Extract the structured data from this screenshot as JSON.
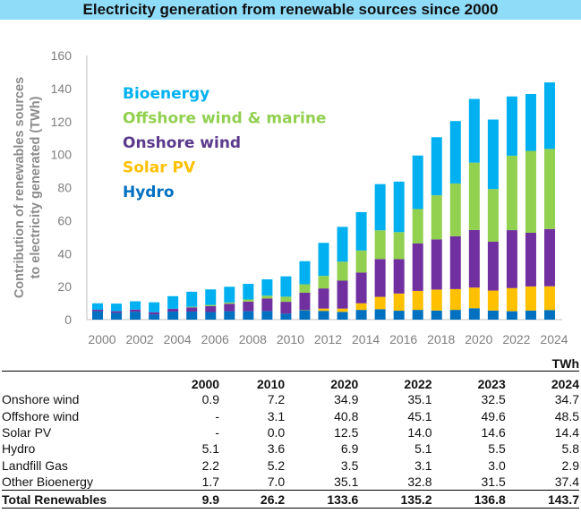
{
  "title": "Electricity generation from renewable sources since 2000",
  "chart_data": {
    "type": "bar",
    "stacked": true,
    "title": "Electricity generation from renewable sources since 2000",
    "xlabel": "",
    "ylabel": "Contribution of  renewables sources to electricity generated (TWh)",
    "ylabel_lines": [
      "Contribution of  renewables sources",
      "to electricity generated (TWh)"
    ],
    "ylim": [
      0,
      160
    ],
    "yticks": [
      0,
      20,
      40,
      60,
      80,
      100,
      120,
      140,
      160
    ],
    "grid": false,
    "legend_position": "top-left",
    "categories": [
      "2000",
      "2001",
      "2002",
      "2003",
      "2004",
      "2005",
      "2006",
      "2007",
      "2008",
      "2009",
      "2010",
      "2011",
      "2012",
      "2013",
      "2014",
      "2015",
      "2016",
      "2017",
      "2018",
      "2019",
      "2020",
      "2021",
      "2022",
      "2023",
      "2024"
    ],
    "xtick_labels": [
      "2000",
      "2002",
      "2004",
      "2006",
      "2008",
      "2010",
      "2012",
      "2014",
      "2016",
      "2018",
      "2020",
      "2022",
      "2024"
    ],
    "series": [
      {
        "name": "Hydro",
        "color": "#0070c0",
        "values": [
          5.1,
          4.1,
          4.8,
          3.2,
          4.9,
          4.9,
          4.6,
          5.1,
          5.1,
          5.2,
          3.6,
          5.7,
          5.3,
          4.7,
          5.9,
          6.3,
          5.4,
          5.9,
          5.5,
          5.9,
          6.9,
          5.5,
          5.1,
          5.5,
          5.8
        ]
      },
      {
        "name": "Solar PV",
        "color": "#ffc000",
        "values": [
          0,
          0,
          0,
          0,
          0,
          0,
          0,
          0,
          0,
          0,
          0.0,
          0.2,
          1.4,
          2.0,
          4.0,
          7.5,
          10.4,
          11.5,
          12.7,
          12.6,
          12.5,
          12.1,
          14.0,
          14.6,
          14.4
        ]
      },
      {
        "name": "Onshore wind",
        "color": "#7030a0",
        "values": [
          0.9,
          1.0,
          1.3,
          1.3,
          1.7,
          2.5,
          3.6,
          4.5,
          5.8,
          7.6,
          7.2,
          10.4,
          12.2,
          16.9,
          18.6,
          22.9,
          20.8,
          28.7,
          30.4,
          32.0,
          34.9,
          29.6,
          35.1,
          32.5,
          34.7
        ]
      },
      {
        "name": "Offshore wind & marine",
        "color": "#92d050",
        "values": [
          0,
          0,
          0,
          0,
          0,
          0.4,
          0.7,
          0.8,
          1.3,
          1.7,
          3.1,
          5.1,
          7.6,
          11.5,
          13.4,
          17.4,
          16.4,
          20.9,
          26.7,
          32.0,
          40.8,
          31.9,
          45.1,
          49.6,
          48.5
        ]
      },
      {
        "name": "Bioenergy",
        "color": "#00b0f0",
        "values": [
          3.9,
          4.6,
          5.0,
          6.0,
          7.6,
          9.1,
          9.4,
          9.5,
          9.5,
          9.9,
          12.3,
          14.0,
          20.0,
          21.1,
          23.2,
          28.0,
          30.6,
          32.4,
          35.2,
          37.8,
          38.6,
          42.1,
          35.9,
          34.5,
          40.3
        ]
      }
    ],
    "legend": [
      {
        "label": "Bioenergy",
        "color": "#00b0f0"
      },
      {
        "label": "Offshore wind & marine",
        "color": "#92d050"
      },
      {
        "label": "Onshore wind",
        "color": "#5b3a8c"
      },
      {
        "label": "Solar PV",
        "color": "#ffc000"
      },
      {
        "label": "Hydro",
        "color": "#0070c0"
      }
    ]
  },
  "table": {
    "unit": "TWh",
    "columns": [
      "2000",
      "2010",
      "2020",
      "2022",
      "2023",
      "2024"
    ],
    "rows": [
      {
        "label": "Onshore wind",
        "values": [
          "0.9",
          "7.2",
          "34.9",
          "35.1",
          "32.5",
          "34.7"
        ]
      },
      {
        "label": "Offshore wind",
        "values": [
          "-",
          "3.1",
          "40.8",
          "45.1",
          "49.6",
          "48.5"
        ]
      },
      {
        "label": "Solar PV",
        "values": [
          "-",
          "0.0",
          "12.5",
          "14.0",
          "14.6",
          "14.4"
        ]
      },
      {
        "label": "Hydro",
        "values": [
          "5.1",
          "3.6",
          "6.9",
          "5.1",
          "5.5",
          "5.8"
        ]
      },
      {
        "label": "Landfill Gas",
        "values": [
          "2.2",
          "5.2",
          "3.5",
          "3.1",
          "3.0",
          "2.9"
        ]
      },
      {
        "label": "Other Bioenergy",
        "values": [
          "1.7",
          "7.0",
          "35.1",
          "32.8",
          "31.5",
          "37.4"
        ]
      }
    ],
    "total": {
      "label": "Total Renewables",
      "values": [
        "9.9",
        "26.2",
        "133.6",
        "135.2",
        "136.8",
        "143.7"
      ]
    }
  }
}
